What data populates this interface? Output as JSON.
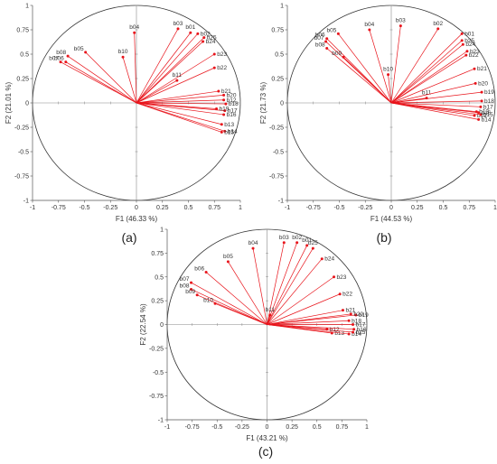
{
  "chart_data": [
    {
      "type": "scatter",
      "panel_label": "(a)",
      "xlabel": "F1 (46.33 %)",
      "ylabel": "F2 (21.01 %)",
      "xlim": [
        -1,
        1
      ],
      "ylim": [
        -1,
        1
      ],
      "xticks": [
        -1,
        -0.75,
        -0.5,
        -0.25,
        0,
        0.25,
        0.5,
        0.75,
        1
      ],
      "yticks": [
        -1,
        -0.75,
        -0.5,
        -0.25,
        0,
        0.25,
        0.5,
        0.75,
        1
      ],
      "xtick_labels": [
        "-1",
        "-0.75",
        "-0.5",
        "-0.25",
        "0",
        "0.25",
        "0.5",
        "0.75",
        "1"
      ],
      "ytick_labels": [
        "-1",
        "-0.75",
        "-0.5",
        "-0.25",
        "0",
        "0.25",
        "0.5",
        "0.75",
        "1"
      ],
      "circle": "unit correlation circle",
      "color": "#e8141b",
      "points": [
        {
          "label": "b01",
          "x": 0.52,
          "y": 0.72
        },
        {
          "label": "b02",
          "x": 0.59,
          "y": 0.71
        },
        {
          "label": "b03",
          "x": 0.4,
          "y": 0.76
        },
        {
          "label": "b04",
          "x": -0.02,
          "y": 0.72
        },
        {
          "label": "b05",
          "x": -0.49,
          "y": 0.52
        },
        {
          "label": "b06",
          "x": -0.68,
          "y": 0.42
        },
        {
          "label": "b07",
          "x": -0.73,
          "y": 0.42
        },
        {
          "label": "b08",
          "x": -0.66,
          "y": 0.48
        },
        {
          "label": "b10",
          "x": -0.13,
          "y": 0.47
        },
        {
          "label": "b11",
          "x": 0.39,
          "y": 0.23
        },
        {
          "label": "b12",
          "x": 0.84,
          "y": 0.03
        },
        {
          "label": "b13",
          "x": 0.82,
          "y": -0.22
        },
        {
          "label": "b14",
          "x": 0.85,
          "y": -0.29
        },
        {
          "label": "b15",
          "x": 0.82,
          "y": -0.3
        },
        {
          "label": "b16",
          "x": 0.84,
          "y": -0.12
        },
        {
          "label": "b17",
          "x": 0.85,
          "y": -0.08
        },
        {
          "label": "b18",
          "x": 0.86,
          "y": -0.01
        },
        {
          "label": "b19",
          "x": 0.77,
          "y": -0.06
        },
        {
          "label": "b20",
          "x": 0.84,
          "y": 0.08
        },
        {
          "label": "b21",
          "x": 0.79,
          "y": 0.12
        },
        {
          "label": "b22",
          "x": 0.75,
          "y": 0.36
        },
        {
          "label": "b23",
          "x": 0.75,
          "y": 0.5
        },
        {
          "label": "b24",
          "x": 0.64,
          "y": 0.63
        },
        {
          "label": "b25",
          "x": 0.65,
          "y": 0.67
        }
      ]
    },
    {
      "type": "scatter",
      "panel_label": "(b)",
      "xlabel": "F1 (44.53 %)",
      "ylabel": "F2 (21.73 %)",
      "xlim": [
        -1,
        1
      ],
      "ylim": [
        -1,
        1
      ],
      "xticks": [
        -1,
        -0.75,
        -0.5,
        -0.25,
        0,
        0.25,
        0.5,
        0.75,
        1
      ],
      "yticks": [
        -1,
        -0.75,
        -0.5,
        -0.25,
        0,
        0.25,
        0.5,
        0.75,
        1
      ],
      "xtick_labels": [
        "-1",
        "-0.75",
        "-0.5",
        "-0.25",
        "0",
        "0.25",
        "0.5",
        "0.75",
        "1"
      ],
      "ytick_labels": [
        "-1",
        "-0.75",
        "-0.5",
        "-0.25",
        "0",
        "0.25",
        "0.5",
        "0.75",
        "1"
      ],
      "circle": "unit correlation circle",
      "color": "#e8141b",
      "points": [
        {
          "label": "b01",
          "x": 0.68,
          "y": 0.71
        },
        {
          "label": "b02",
          "x": 0.45,
          "y": 0.76
        },
        {
          "label": "b03",
          "x": 0.09,
          "y": 0.79
        },
        {
          "label": "b04",
          "x": -0.21,
          "y": 0.75
        },
        {
          "label": "b05",
          "x": -0.51,
          "y": 0.71
        },
        {
          "label": "b06",
          "x": -0.62,
          "y": 0.66
        },
        {
          "label": "b07",
          "x": -0.63,
          "y": 0.63
        },
        {
          "label": "b08",
          "x": -0.62,
          "y": 0.56
        },
        {
          "label": "b09",
          "x": -0.46,
          "y": 0.47
        },
        {
          "label": "b10",
          "x": -0.03,
          "y": 0.29
        },
        {
          "label": "b11",
          "x": 0.34,
          "y": 0.05
        },
        {
          "label": "b12",
          "x": 0.8,
          "y": -0.13
        },
        {
          "label": "b13",
          "x": 0.82,
          "y": -0.09
        },
        {
          "label": "b14",
          "x": 0.84,
          "y": -0.17
        },
        {
          "label": "b15",
          "x": 0.86,
          "y": -0.12
        },
        {
          "label": "b16",
          "x": 0.84,
          "y": -0.1
        },
        {
          "label": "b17",
          "x": 0.86,
          "y": -0.04
        },
        {
          "label": "b18",
          "x": 0.87,
          "y": 0.02
        },
        {
          "label": "b19",
          "x": 0.87,
          "y": 0.11
        },
        {
          "label": "b20",
          "x": 0.81,
          "y": 0.2
        },
        {
          "label": "b21",
          "x": 0.8,
          "y": 0.35
        },
        {
          "label": "b22",
          "x": 0.72,
          "y": 0.49
        },
        {
          "label": "b23",
          "x": 0.73,
          "y": 0.53
        },
        {
          "label": "b24",
          "x": 0.69,
          "y": 0.6
        },
        {
          "label": "b25",
          "x": 0.68,
          "y": 0.64
        }
      ]
    },
    {
      "type": "scatter",
      "panel_label": "(c)",
      "xlabel": "F1 (43.21 %)",
      "ylabel": "F2 (22.54 %)",
      "xlim": [
        -1,
        1
      ],
      "ylim": [
        -1,
        1
      ],
      "xticks": [
        -1,
        -0.75,
        -0.5,
        -0.25,
        0,
        0.25,
        0.5,
        0.75,
        1
      ],
      "yticks": [
        -1,
        -0.75,
        -0.5,
        -0.25,
        0,
        0.25,
        0.5,
        0.75,
        1
      ],
      "xtick_labels": [
        "-1",
        "-0.75",
        "-0.5",
        "-0.25",
        "0",
        "0.25",
        "0.5",
        "0.75",
        "1"
      ],
      "ytick_labels": [
        "-1",
        "-0.75",
        "-0.5",
        "-0.25",
        "0",
        "0.25",
        "0.5",
        "0.75",
        "1"
      ],
      "circle": "unit correlation circle",
      "color": "#e8141b",
      "points": [
        {
          "label": "b01",
          "x": 0.4,
          "y": 0.83
        },
        {
          "label": "b02",
          "x": 0.3,
          "y": 0.86
        },
        {
          "label": "b03",
          "x": 0.17,
          "y": 0.86
        },
        {
          "label": "b04",
          "x": -0.14,
          "y": 0.8
        },
        {
          "label": "b05",
          "x": -0.39,
          "y": 0.66
        },
        {
          "label": "b06",
          "x": -0.61,
          "y": 0.55
        },
        {
          "label": "b07",
          "x": -0.76,
          "y": 0.44
        },
        {
          "label": "b08",
          "x": -0.76,
          "y": 0.37
        },
        {
          "label": "b09",
          "x": -0.7,
          "y": 0.31
        },
        {
          "label": "b10",
          "x": -0.52,
          "y": 0.22
        },
        {
          "label": "b11",
          "x": 0.03,
          "y": 0.1
        },
        {
          "label": "b12",
          "x": 0.6,
          "y": -0.05
        },
        {
          "label": "b13",
          "x": 0.65,
          "y": -0.09
        },
        {
          "label": "b14",
          "x": 0.82,
          "y": -0.1
        },
        {
          "label": "b15",
          "x": 0.86,
          "y": -0.08
        },
        {
          "label": "b16",
          "x": 0.87,
          "y": -0.05
        },
        {
          "label": "b17",
          "x": 0.86,
          "y": 0.0
        },
        {
          "label": "b18",
          "x": 0.82,
          "y": 0.04
        },
        {
          "label": "b19",
          "x": 0.89,
          "y": 0.1
        },
        {
          "label": "b20",
          "x": 0.84,
          "y": 0.11
        },
        {
          "label": "b21",
          "x": 0.76,
          "y": 0.15
        },
        {
          "label": "b22",
          "x": 0.73,
          "y": 0.32
        },
        {
          "label": "b23",
          "x": 0.67,
          "y": 0.5
        },
        {
          "label": "b24",
          "x": 0.55,
          "y": 0.69
        },
        {
          "label": "b25",
          "x": 0.46,
          "y": 0.8
        }
      ]
    }
  ]
}
